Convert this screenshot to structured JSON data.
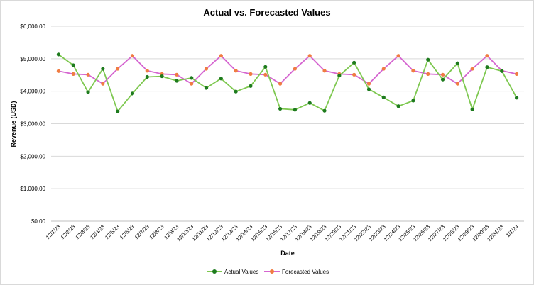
{
  "chart_data": {
    "type": "line",
    "title": "Actual vs. Forecasted Values",
    "xlabel": "Date",
    "ylabel": "Revenue (USD)",
    "ylim": [
      0,
      6000
    ],
    "yticks": [
      "$0.00",
      "$1,000.00",
      "$2,000.00",
      "$3,000.00",
      "$4,000.00",
      "$5,000.00",
      "$6,000.00"
    ],
    "grid": true,
    "legend_position": "bottom",
    "categories": [
      "12/1/23",
      "12/2/23",
      "12/3/23",
      "12/4/23",
      "12/5/23",
      "12/6/23",
      "12/7/23",
      "12/8/23",
      "12/9/23",
      "12/10/23",
      "12/11/23",
      "12/12/23",
      "12/13/23",
      "12/14/23",
      "12/15/23",
      "12/16/23",
      "12/17/23",
      "12/18/23",
      "12/19/23",
      "12/20/23",
      "12/21/23",
      "12/22/23",
      "12/23/23",
      "12/24/23",
      "12/25/23",
      "12/26/23",
      "12/27/23",
      "12/28/23",
      "12/29/23",
      "12/30/23",
      "12/31/23",
      "1/1/24"
    ],
    "series": [
      {
        "name": "Actual Values",
        "color": "#7ec850",
        "marker_color": "#1e7b1e",
        "values": [
          5130,
          4800,
          3970,
          4690,
          3380,
          3930,
          4440,
          4460,
          4320,
          4410,
          4100,
          4390,
          3990,
          4160,
          4750,
          3460,
          3430,
          3640,
          3400,
          4480,
          4880,
          4060,
          3810,
          3540,
          3710,
          4970,
          4360,
          4860,
          3440,
          4740,
          4620,
          3800
        ]
      },
      {
        "name": "Forecasted Values",
        "color": "#d566d0",
        "marker_color": "#f07c42",
        "values": [
          4620,
          4530,
          4510,
          4230,
          4690,
          5090,
          4630,
          4530,
          4510,
          4230,
          4690,
          5090,
          4630,
          4530,
          4510,
          4230,
          4690,
          5090,
          4630,
          4530,
          4510,
          4230,
          4690,
          5090,
          4630,
          4530,
          4510,
          4230,
          4690,
          5090,
          4630,
          4530
        ]
      }
    ]
  }
}
